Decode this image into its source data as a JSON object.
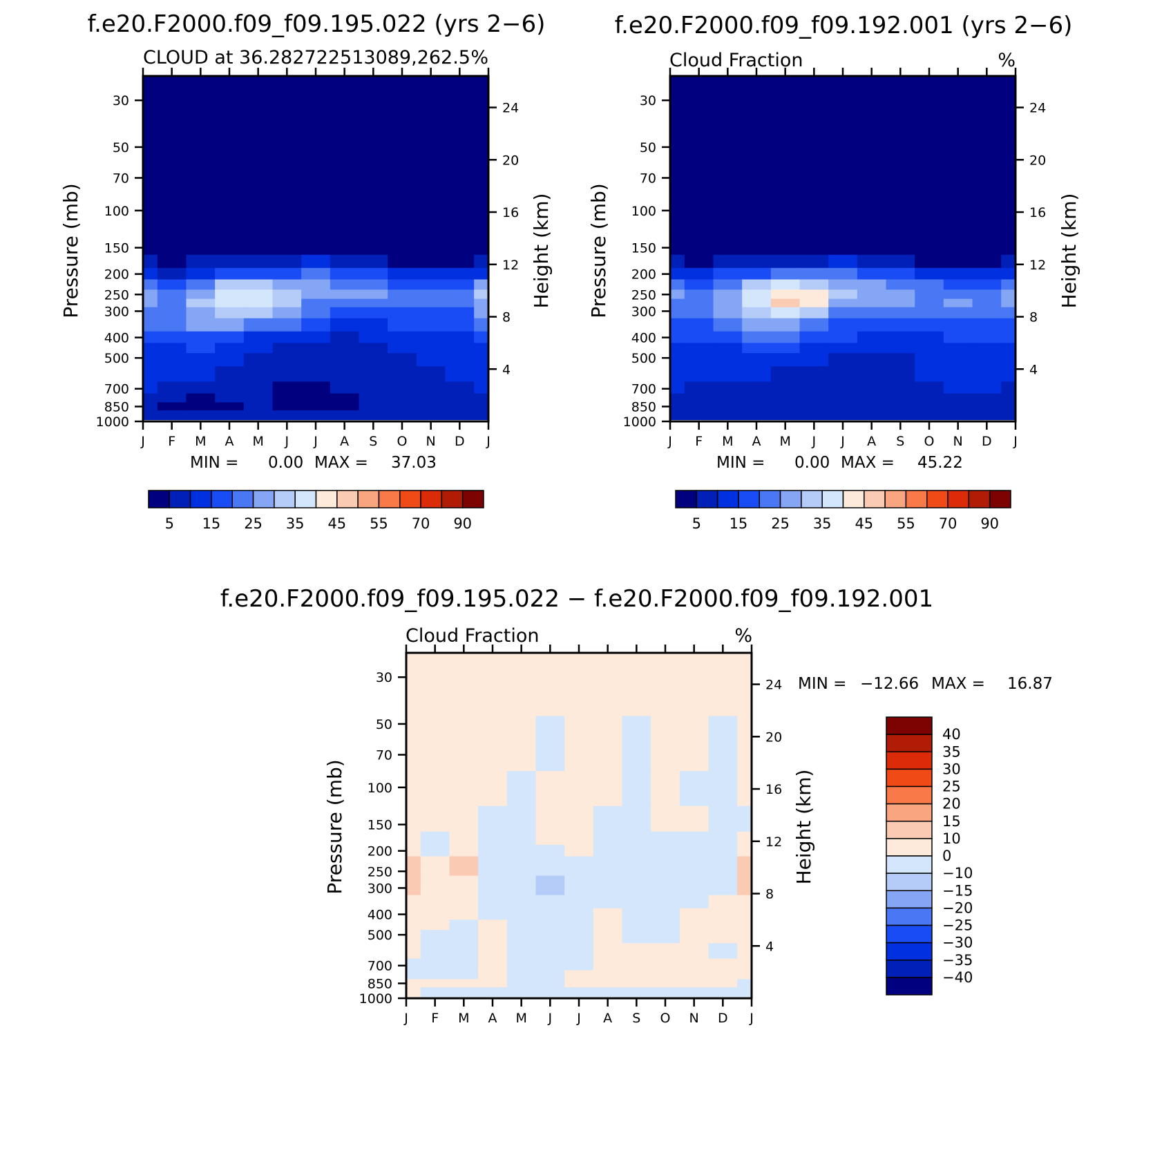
{
  "colors": {
    "frame": "#000000",
    "background": "#ffffff",
    "abs_palette": [
      "#01017f",
      "#0020b8",
      "#0030e0",
      "#1a4cf5",
      "#4a78f5",
      "#84a6f5",
      "#b5ccf8",
      "#d4e6fb",
      "#fdeadb",
      "#fbcab3",
      "#f9a680",
      "#f97a48",
      "#f04a16",
      "#dc2b08",
      "#b01c06",
      "#7d0202"
    ],
    "diff_palette": [
      "#01017f",
      "#0020b8",
      "#0030e0",
      "#1a4cf5",
      "#4a78f5",
      "#84a6f5",
      "#b5ccf8",
      "#d4e6fb",
      "#fdeadb",
      "#fbcab3",
      "#f9a680",
      "#f97a48",
      "#f04a16",
      "#dc2b08",
      "#b01c06",
      "#7d0202"
    ]
  },
  "chart_data": [
    {
      "id": "model_a",
      "type": "heatmap",
      "title": "f.e20.F2000.f09_f09.195.022 (yrs 2−6)",
      "subtitle_left": "CLOUD at 36.282722513089,262.5",
      "subtitle_right": "%",
      "xlabel": "",
      "ylabel": "Pressure (mb)",
      "ylabel_right": "Height (km)",
      "x": [
        "J",
        "F",
        "M",
        "A",
        "M",
        "J",
        "J",
        "A",
        "S",
        "O",
        "N",
        "D",
        "J"
      ],
      "y_ticks": [
        30,
        50,
        70,
        100,
        150,
        200,
        250,
        300,
        400,
        500,
        700,
        850,
        1000
      ],
      "y_right_ticks": [
        24,
        20,
        16,
        12,
        8,
        4
      ],
      "ylim": [
        1000,
        23
      ],
      "y_scale": "log",
      "y_levels": [
        30,
        70,
        100,
        150,
        175,
        200,
        225,
        250,
        275,
        300,
        350,
        400,
        450,
        500,
        600,
        700,
        775,
        850,
        925
      ],
      "z": [
        [
          0,
          0,
          0,
          0,
          0,
          0,
          0,
          0,
          0,
          0,
          0,
          0,
          0
        ],
        [
          0,
          0,
          0,
          0,
          0,
          0,
          0,
          0,
          0,
          0,
          0,
          0,
          0
        ],
        [
          0,
          0,
          0,
          0,
          0,
          0,
          0,
          0,
          0,
          0,
          0,
          0,
          0
        ],
        [
          1,
          0,
          1,
          2,
          2,
          2,
          4,
          2,
          1,
          0,
          0,
          0,
          1
        ],
        [
          5,
          3,
          5,
          7,
          7,
          7,
          10,
          7,
          6,
          3,
          3,
          4,
          6
        ],
        [
          12,
          9,
          14,
          17,
          18,
          19,
          22,
          18,
          16,
          11,
          11,
          10,
          14
        ],
        [
          22,
          16,
          24,
          30,
          31,
          29,
          28,
          24,
          22,
          16,
          19,
          18,
          26
        ],
        [
          27,
          22,
          29,
          35,
          37,
          34,
          27,
          25,
          26,
          22,
          21,
          21,
          30
        ],
        [
          27,
          23,
          30,
          35,
          35,
          32,
          24,
          21,
          23,
          21,
          20,
          20,
          29
        ],
        [
          24,
          22,
          28,
          31,
          30,
          28,
          21,
          18,
          17,
          18,
          19,
          18,
          26
        ],
        [
          20,
          20,
          25,
          25,
          23,
          20,
          16,
          14,
          13,
          16,
          16,
          16,
          22
        ],
        [
          16,
          17,
          19,
          17,
          14,
          11,
          10,
          9,
          10,
          12,
          13,
          13,
          17
        ],
        [
          14,
          14,
          15,
          13,
          10,
          8,
          7,
          7,
          8,
          10,
          11,
          12,
          14
        ],
        [
          13,
          12,
          12,
          11,
          8,
          6,
          6,
          7,
          7,
          9,
          10,
          11,
          12
        ],
        [
          12,
          11,
          10,
          9,
          7,
          5,
          5,
          6,
          6,
          8,
          9,
          10,
          11
        ],
        [
          11,
          9,
          8,
          7,
          6,
          4,
          4,
          5,
          5,
          7,
          8,
          9,
          10
        ],
        [
          9,
          5,
          4,
          5,
          5,
          4,
          4,
          4,
          5,
          6,
          7,
          8,
          9
        ],
        [
          8,
          4,
          4,
          4,
          5,
          4,
          4,
          4,
          5,
          6,
          7,
          8,
          8
        ],
        [
          7,
          6,
          6,
          6,
          6,
          5,
          5,
          5,
          6,
          7,
          7,
          8,
          7
        ]
      ],
      "levels": [
        5,
        10,
        15,
        20,
        25,
        30,
        35,
        40,
        45,
        50,
        55,
        60,
        70,
        80,
        90
      ],
      "colorbar_labels": [
        "5",
        "15",
        "25",
        "35",
        "45",
        "55",
        "70",
        "90"
      ],
      "min_text": "MIN =",
      "min_value": "0.00",
      "max_text": "MAX =",
      "max_value": "37.03"
    },
    {
      "id": "model_b",
      "type": "heatmap",
      "title": "f.e20.F2000.f09_f09.192.001 (yrs 2−6)",
      "subtitle_left": "Cloud Fraction",
      "subtitle_right": "%",
      "xlabel": "",
      "ylabel": "Pressure (mb)",
      "ylabel_right": "Height (km)",
      "x": [
        "J",
        "F",
        "M",
        "A",
        "M",
        "J",
        "J",
        "A",
        "S",
        "O",
        "N",
        "D",
        "J"
      ],
      "y_ticks": [
        30,
        50,
        70,
        100,
        150,
        200,
        250,
        300,
        400,
        500,
        700,
        850,
        1000
      ],
      "y_right_ticks": [
        24,
        20,
        16,
        12,
        8,
        4
      ],
      "ylim": [
        1000,
        23
      ],
      "y_scale": "log",
      "y_levels": [
        30,
        70,
        100,
        150,
        175,
        200,
        225,
        250,
        275,
        300,
        350,
        400,
        450,
        500,
        600,
        700,
        775,
        850,
        925
      ],
      "z": [
        [
          0,
          0,
          0,
          0,
          0,
          0,
          0,
          0,
          0,
          0,
          0,
          0,
          0
        ],
        [
          0,
          0,
          0,
          0,
          0,
          0,
          0,
          0,
          0,
          0,
          0,
          0,
          0
        ],
        [
          0,
          0,
          0,
          0,
          0,
          0,
          0,
          0,
          0,
          0,
          0,
          0,
          0
        ],
        [
          1,
          0,
          1,
          2,
          2,
          2,
          4,
          2,
          1,
          0,
          0,
          0,
          1
        ],
        [
          6,
          4,
          6,
          8,
          8,
          8,
          10,
          8,
          6,
          3,
          3,
          4,
          6
        ],
        [
          13,
          10,
          15,
          19,
          20,
          20,
          22,
          19,
          16,
          11,
          11,
          10,
          14
        ],
        [
          21,
          17,
          24,
          32,
          37,
          34,
          28,
          26,
          24,
          20,
          19,
          18,
          22
        ],
        [
          25,
          22,
          28,
          38,
          44,
          41,
          30,
          28,
          28,
          24,
          24,
          23,
          26
        ],
        [
          24,
          21,
          27,
          37,
          45,
          40,
          27,
          26,
          26,
          23,
          25,
          24,
          25
        ],
        [
          22,
          20,
          26,
          33,
          37,
          33,
          23,
          21,
          21,
          20,
          23,
          22,
          23
        ],
        [
          18,
          17,
          21,
          26,
          28,
          24,
          19,
          16,
          16,
          17,
          19,
          19,
          19
        ],
        [
          15,
          15,
          17,
          20,
          20,
          17,
          15,
          12,
          12,
          14,
          15,
          16,
          16
        ],
        [
          13,
          13,
          14,
          16,
          15,
          13,
          11,
          10,
          10,
          12,
          13,
          14,
          14
        ],
        [
          12,
          12,
          12,
          12,
          11,
          10,
          9,
          8,
          9,
          11,
          12,
          12,
          12
        ],
        [
          11,
          10,
          10,
          10,
          9,
          8,
          6,
          7,
          8,
          10,
          11,
          11,
          11
        ],
        [
          10,
          9,
          9,
          9,
          8,
          7,
          6,
          6,
          7,
          9,
          10,
          10,
          9
        ],
        [
          9,
          8,
          7,
          8,
          7,
          6,
          6,
          6,
          7,
          8,
          9,
          9,
          8
        ],
        [
          8,
          8,
          7,
          7,
          6,
          6,
          6,
          6,
          6,
          7,
          8,
          8,
          7
        ],
        [
          8,
          7,
          6,
          6,
          6,
          5,
          5,
          5,
          5,
          6,
          7,
          7,
          6
        ]
      ],
      "levels": [
        5,
        10,
        15,
        20,
        25,
        30,
        35,
        40,
        45,
        50,
        55,
        60,
        70,
        80,
        90
      ],
      "colorbar_labels": [
        "5",
        "15",
        "25",
        "35",
        "45",
        "55",
        "70",
        "90"
      ],
      "min_text": "MIN =",
      "min_value": "0.00",
      "max_text": "MAX =",
      "max_value": "45.22"
    },
    {
      "id": "difference",
      "type": "heatmap",
      "title": "f.e20.F2000.f09_f09.195.022 − f.e20.F2000.f09_f09.192.001",
      "subtitle_left": "Cloud Fraction",
      "subtitle_right": "%",
      "xlabel": "",
      "ylabel": "Pressure (mb)",
      "ylabel_right": "Height (km)",
      "x": [
        "J",
        "F",
        "M",
        "A",
        "M",
        "J",
        "J",
        "A",
        "S",
        "O",
        "N",
        "D",
        "J"
      ],
      "y_ticks": [
        30,
        50,
        70,
        100,
        150,
        200,
        250,
        300,
        400,
        500,
        700,
        850,
        1000
      ],
      "y_right_ticks": [
        24,
        20,
        16,
        12,
        8,
        4
      ],
      "ylim": [
        1000,
        23
      ],
      "y_scale": "log",
      "y_levels": [
        30,
        70,
        100,
        150,
        175,
        200,
        225,
        250,
        275,
        300,
        350,
        400,
        450,
        500,
        600,
        700,
        775,
        850,
        925
      ],
      "z": [
        [
          0.5,
          0.5,
          0.5,
          0.5,
          0.5,
          0.5,
          0.5,
          0.5,
          0.5,
          0.5,
          0.5,
          0.5,
          0.5
        ],
        [
          0.5,
          0.5,
          0.5,
          0.5,
          0.5,
          -0.5,
          0.5,
          0.5,
          -0.5,
          0.5,
          0.5,
          -0.5,
          0.5
        ],
        [
          0.5,
          0.5,
          0.5,
          0.5,
          -0.5,
          0.5,
          0.5,
          0.5,
          -0.5,
          0.5,
          -0.5,
          -0.5,
          0.5
        ],
        [
          0.5,
          0.5,
          0.5,
          -0.5,
          -0.5,
          0.5,
          0.5,
          -0.5,
          -0.5,
          0.5,
          0.5,
          -0.5,
          -0.5
        ],
        [
          0.5,
          -0.5,
          0.5,
          -0.5,
          -0.5,
          0.5,
          0.5,
          -0.5,
          -0.5,
          -0.5,
          -0.5,
          -0.5,
          0.5
        ],
        [
          0.5,
          -0.5,
          1,
          -0.5,
          -1,
          -1,
          0.5,
          -0.5,
          -1,
          -1,
          -1,
          -0.5,
          0.5
        ],
        [
          10.5,
          0.5,
          10.5,
          -0.5,
          -3,
          -5,
          -1,
          -2,
          -2,
          -4,
          -2,
          -1,
          10.5
        ],
        [
          10.5,
          0.5,
          10.2,
          -1,
          -5,
          -7,
          -3,
          -1,
          -2,
          -2,
          -1,
          -1,
          12
        ],
        [
          11,
          0.5,
          0.5,
          -2,
          -10,
          -12.5,
          -4,
          -0.5,
          -3,
          -2,
          -1,
          -1,
          12
        ],
        [
          11,
          0.5,
          0.5,
          -2,
          -7,
          -10.5,
          -3,
          -0.5,
          -4,
          -3,
          -2,
          -2,
          11
        ],
        [
          0.5,
          0.5,
          0.5,
          -1,
          -4,
          -6,
          -3,
          -1,
          -3,
          -3,
          -1,
          0.5,
          0.5
        ],
        [
          0.5,
          0.5,
          0.5,
          -1,
          -3,
          -4,
          -3,
          2,
          -2,
          -2,
          0.5,
          0.5,
          0.5
        ],
        [
          0.5,
          0.5,
          -1,
          0.5,
          -2,
          -3,
          -1,
          3,
          -1,
          -1,
          0.5,
          0.5,
          0.5
        ],
        [
          0.5,
          -0.5,
          -1,
          1,
          -1,
          -2,
          -1,
          4,
          -1,
          -0.5,
          0.5,
          0.5,
          0.5
        ],
        [
          0.5,
          -1,
          -2,
          1,
          -1,
          -2,
          -1,
          3,
          0.5,
          0.5,
          0.5,
          -1,
          0.5
        ],
        [
          -1,
          -2,
          -2,
          0.5,
          -1,
          -2,
          -1,
          1,
          1,
          0.5,
          1,
          0.5,
          0.5
        ],
        [
          -1,
          -1,
          -1,
          0.5,
          -0.5,
          -1,
          0.5,
          0.5,
          0.5,
          1,
          0.5,
          0.5,
          0.5
        ],
        [
          0.5,
          0.5,
          0.5,
          0.5,
          -0.5,
          -0.5,
          0.5,
          0.5,
          0.5,
          0.5,
          0.5,
          0.5,
          -1
        ],
        [
          0.5,
          -1,
          -1,
          -1,
          -1,
          -1,
          -1,
          -1,
          -1,
          -1,
          -1,
          -1,
          -1
        ]
      ],
      "levels": [
        -40,
        -35,
        -30,
        -25,
        -20,
        -15,
        -10,
        0,
        10,
        15,
        20,
        25,
        30,
        35,
        40
      ],
      "colorbar_labels": [
        "40",
        "35",
        "30",
        "25",
        "20",
        "15",
        "10",
        "0",
        "−10",
        "−15",
        "−20",
        "−25",
        "−30",
        "−35",
        "−40"
      ],
      "min_text": "MIN =",
      "min_value": "−12.66",
      "max_text": "MAX =",
      "max_value": "16.87"
    }
  ]
}
